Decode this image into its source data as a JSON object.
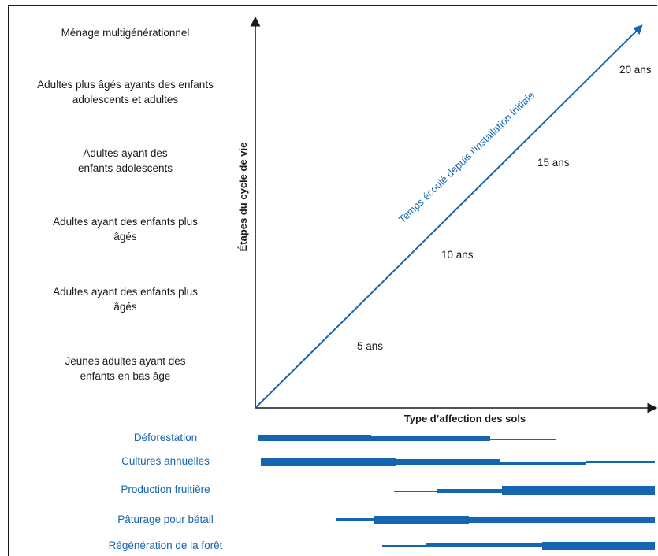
{
  "stages": [
    "Ménage multigénérationnel",
    "Adultes plus âgés ayants des enfants adolescents et adultes",
    "Adultes ayant des enfants adolescents",
    "Adultes ayant des enfants plus âgés",
    "Adultes ayant des enfants plus âgés",
    "Jeunes adultes ayant des enfants en bas âge"
  ],
  "axes": {
    "y_label": "Étapes du cycle de vie",
    "x_label": "Type d’affection des sols"
  },
  "time_arrow": {
    "label": "Temps écoulé depuis l’installation initiale",
    "color": "#1565b0",
    "markers": [
      "5 ans",
      "10 ans",
      "15 ans",
      "20 ans"
    ]
  },
  "land_uses": [
    "Déforestation",
    "Cultures annuelles",
    "Production fruitière",
    "Pâturage pour bétail",
    "Régénération de la forêt"
  ],
  "colors": {
    "accent": "#1565b0",
    "text": "#1a1a1a"
  }
}
